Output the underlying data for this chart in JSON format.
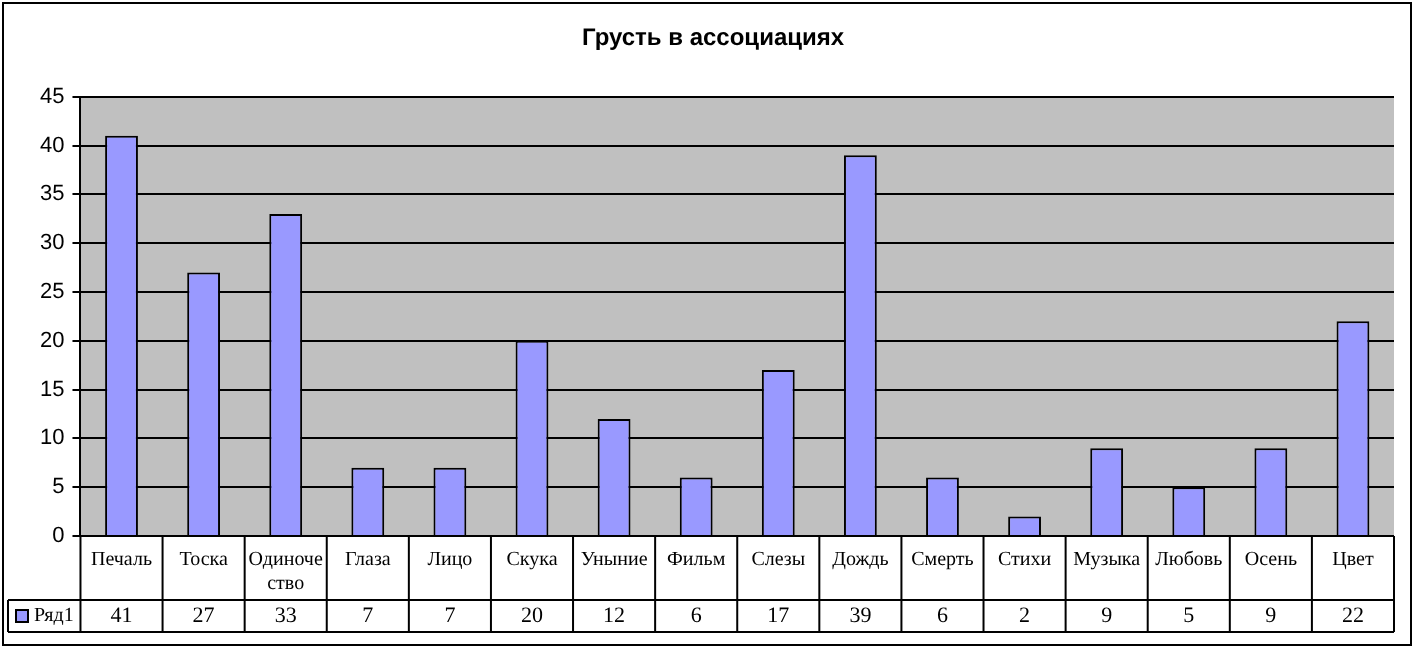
{
  "chart_data": {
    "type": "bar",
    "title": "Грусть в ассоциациях",
    "categories": [
      "Печаль",
      "Тоска",
      "Одиночество",
      "Глаза",
      "Лицо",
      "Скука",
      "Уныние",
      "Фильм",
      "Слезы",
      "Дождь",
      "Смерть",
      "Стихи",
      "Музыка",
      "Любовь",
      "Осень",
      "Цвет"
    ],
    "series": [
      {
        "name": "Ряд1",
        "color": "#9999ff",
        "values": [
          41,
          27,
          33,
          7,
          7,
          20,
          12,
          6,
          17,
          39,
          6,
          2,
          9,
          5,
          9,
          22
        ]
      }
    ],
    "ylim": [
      0,
      45
    ],
    "yticks": [
      0,
      5,
      10,
      15,
      20,
      25,
      30,
      35,
      40,
      45
    ],
    "grid": "y",
    "legend": "bottom left",
    "data_labels": true
  }
}
